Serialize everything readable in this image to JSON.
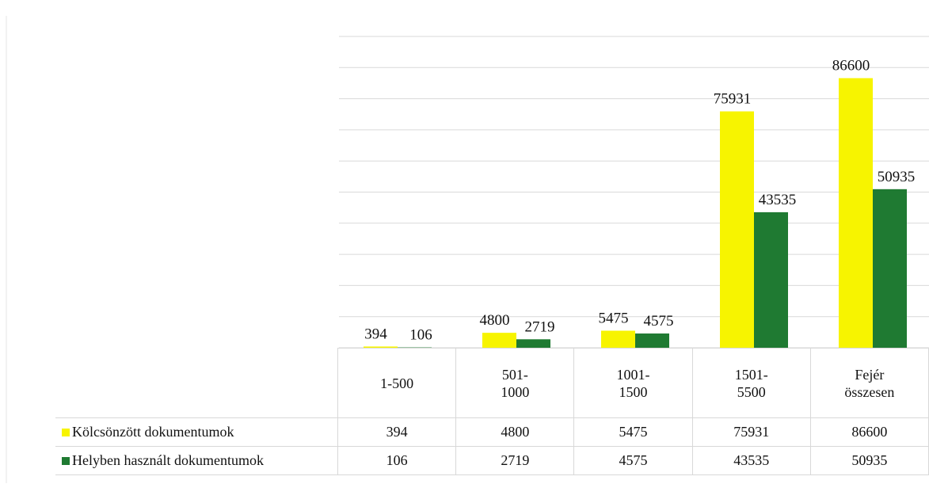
{
  "chart_data": {
    "type": "bar",
    "categories": [
      "1-500",
      "501-1000",
      "1001-1500",
      "1501-5500",
      "Fejér összesen"
    ],
    "series": [
      {
        "name": "Kölcsönzött dokumentumok",
        "color": "#f7f400",
        "values": [
          394,
          4800,
          5475,
          75931,
          86600
        ]
      },
      {
        "name": "Helyben használt dokumentumok",
        "color": "#1f7a32",
        "values": [
          106,
          2719,
          4575,
          43535,
          50935
        ]
      }
    ],
    "ylim": [
      0,
      100000
    ],
    "yticks": [
      0,
      10000,
      20000,
      30000,
      40000,
      50000,
      60000,
      70000,
      80000,
      90000,
      100000
    ],
    "grid": true
  }
}
